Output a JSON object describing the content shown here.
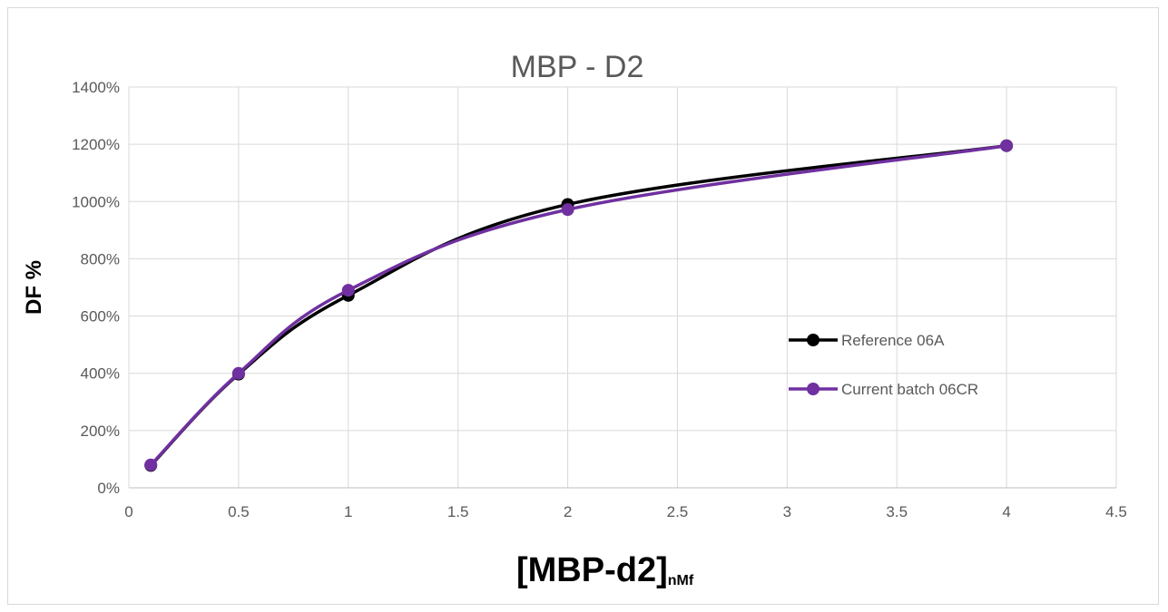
{
  "chart_data": {
    "type": "line",
    "title": "MBP - D2",
    "xlabel": "[MBP-d2]",
    "xlabel_subscript": "nMf",
    "ylabel": "DF %",
    "xlim": [
      0,
      4.5
    ],
    "ylim": [
      0,
      14
    ],
    "x_ticks": [
      "0",
      "0.5",
      "1",
      "1.5",
      "2",
      "2.5",
      "3",
      "3.5",
      "4",
      "4.5"
    ],
    "y_ticks": [
      "0%",
      "200%",
      "400%",
      "600%",
      "800%",
      "1000%",
      "1200%",
      "1400%"
    ],
    "grid": true,
    "legend_position": "right",
    "x": [
      0.1,
      0.5,
      1,
      2,
      4
    ],
    "series": [
      {
        "name": "Reference 06A",
        "color": "#000000",
        "values": [
          0.78,
          3.97,
          6.72,
          9.9,
          11.95
        ]
      },
      {
        "name": "Current batch 06CR",
        "color": "#7030a0",
        "values": [
          0.8,
          4.0,
          6.9,
          9.72,
          11.95
        ]
      }
    ]
  }
}
